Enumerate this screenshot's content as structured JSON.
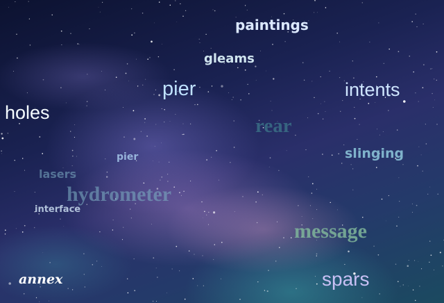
{
  "background": {
    "description_colors": [
      "#0c1230",
      "#2a2f6a",
      "#1b4a60",
      "#b490d0",
      "#3caaaa"
    ]
  },
  "words": {
    "paintings": "paintings",
    "gleams": "gleams",
    "pier_large": "pier",
    "intents": "intents",
    "holes": "holes",
    "rear": "rear",
    "slinging": "slinging",
    "pier_small": "pier",
    "lasers": "lasers",
    "hydrometer": "hydrometer",
    "interface": "interface",
    "message": "message",
    "annex": "annex",
    "spars": "spars"
  }
}
